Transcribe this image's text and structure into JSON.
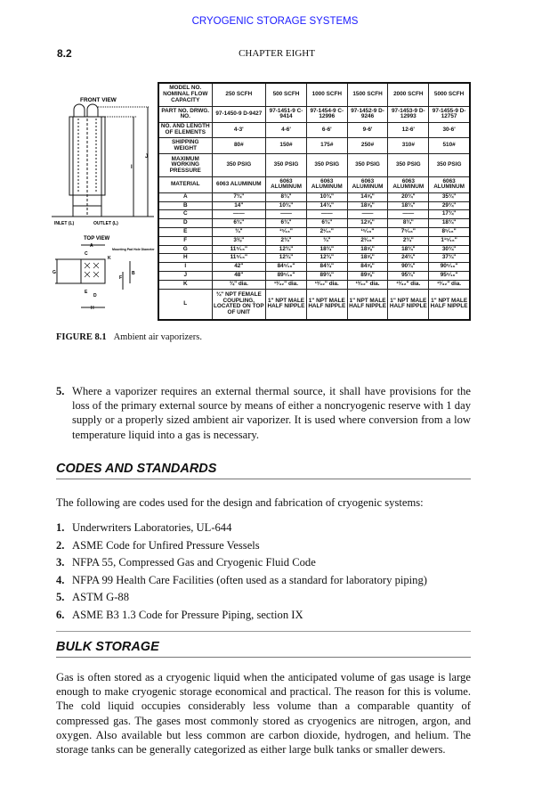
{
  "running_header": "CRYOGENIC STORAGE SYSTEMS",
  "page_number": "8.2",
  "chapter": "CHAPTER EIGHT",
  "figure": {
    "labels": {
      "front_view": "FRONT VIEW",
      "top_view": "TOP VIEW",
      "inlet": "INLET (L)",
      "outlet": "OUTLET (L)",
      "mounting": "Mounting Pad Hole Diameter",
      "I": "I",
      "J": "J",
      "A": "A",
      "B": "B",
      "C": "C",
      "D": "D",
      "E": "E",
      "F": "F",
      "G": "G",
      "H": "H",
      "K": "K"
    },
    "number": "FIGURE 8.1",
    "caption": "Ambient air vaporizers."
  },
  "table": {
    "rows": [
      {
        "label": "MODEL NO. NOMINAL FLOW CAPACITY",
        "values": [
          "250 SCFH",
          "500 SCFH",
          "1000 SCFH",
          "1500 SCFH",
          "2000 SCFH",
          "5000 SCFH"
        ]
      },
      {
        "label": "PART NO. DRWG. NO.",
        "values": [
          "97-1450-9 D-9427",
          "97-1451-9 C-9414",
          "97-1454-9 C-12996",
          "97-1452-9 D-9246",
          "97-1453-9 D-12993",
          "97-1455-9 D-12757"
        ]
      },
      {
        "label": "NO. AND LENGTH OF ELEMENTS",
        "values": [
          "4-3'",
          "4-6'",
          "6-6'",
          "9-6'",
          "12-6'",
          "30-6'"
        ]
      },
      {
        "label": "SHIPPING WEIGHT",
        "values": [
          "80#",
          "150#",
          "175#",
          "250#",
          "310#",
          "510#"
        ]
      },
      {
        "label": "MAXIMUM WORKING PRESSURE",
        "values": [
          "350 PSIG",
          "350 PSIG",
          "350 PSIG",
          "350 PSIG",
          "350 PSIG",
          "350 PSIG"
        ]
      },
      {
        "label": "MATERIAL",
        "values": [
          "6063 ALUMINUM",
          "6063 ALUMINUM",
          "6063 ALUMINUM",
          "6063 ALUMINUM",
          "6063 ALUMINUM",
          "6063 ALUMINUM"
        ]
      },
      {
        "label": "A",
        "values": [
          "7¾\"",
          "8¾\"",
          "10¾\"",
          "14⅝\"",
          "20¾\"",
          "35¾\""
        ]
      },
      {
        "label": "B",
        "values": [
          "14\"",
          "10¾\"",
          "14¾\"",
          "18⅝\"",
          "18¾\"",
          "29¾\""
        ]
      },
      {
        "label": "C",
        "values": [
          "——",
          "——",
          "——",
          "——",
          "——",
          "17¾\""
        ]
      },
      {
        "label": "D",
        "values": [
          "6¾\"",
          "6¾\"",
          "6¾\"",
          "12⅝\"",
          "8¾\"",
          "18¾\""
        ]
      },
      {
        "label": "E",
        "values": [
          "¾\"",
          "¹⁵⁄₁₆\"",
          "2¹⁄₁₆\"",
          "¹⁵⁄₁₆\"",
          "7⁵⁄₁₆\"",
          "8⁵⁄₁₆\""
        ]
      },
      {
        "label": "F",
        "values": [
          "3⅜\"",
          "2¾\"",
          "¾\"",
          "2³⁄₁₆\"",
          "2¾\"",
          "1¹⁵⁄₁₆\""
        ]
      },
      {
        "label": "G",
        "values": [
          "11⁵⁄₁₆\"",
          "12¾\"",
          "18¾\"",
          "18⅝\"",
          "18¾\"",
          "30¾\""
        ]
      },
      {
        "label": "H",
        "values": [
          "11⁵⁄₁₆\"",
          "12¾\"",
          "12¾\"",
          "18⅝\"",
          "24¾\"",
          "37¾\""
        ]
      },
      {
        "label": "I",
        "values": [
          "42\"",
          "84⁵⁄₁₆\"",
          "84¾\"",
          "84⅝\"",
          "90¾\"",
          "90⁵⁄₁₆\""
        ]
      },
      {
        "label": "J",
        "values": [
          "48\"",
          "89⁵⁄₁₆\"",
          "89¾\"",
          "89⅝\"",
          "95¾\"",
          "95⁵⁄₁₆\""
        ]
      },
      {
        "label": "K",
        "values": [
          "¾\" dia.",
          "¹³⁄₃₂\" dia.",
          "¹³⁄₃₂\" dia.",
          "¹³⁄₃₂\" dia.",
          "¹³⁄₃₂\" dia.",
          "¹³⁄₃₂\" dia."
        ]
      },
      {
        "label": "L",
        "values": [
          "¾\" NPT FEMALE COUPLING, LOCATED ON TOP OF UNIT",
          "1\" NPT MALE HALF NIPPLE",
          "1\" NPT MALE HALF NIPPLE",
          "1\" NPT MALE HALF NIPPLE",
          "1\" NPT MALE HALF NIPPLE",
          "1\" NPT MALE HALF NIPPLE"
        ]
      }
    ]
  },
  "item5": {
    "number": "5.",
    "text": "Where a vaporizer requires an external thermal source, it shall have provisions for the loss of the primary external source by means of either a noncryogenic reserve with 1 day supply or a properly sized ambient air vaporizer. It is used where conversion from a low temperature liquid into a gas is necessary."
  },
  "codes": {
    "heading": "CODES AND STANDARDS",
    "intro": "The following are codes used for the design and fabrication of cryogenic systems:",
    "items": [
      {
        "n": "1.",
        "t": "Underwriters Laboratories, UL-644"
      },
      {
        "n": "2.",
        "t": "ASME Code for Unfired Pressure Vessels"
      },
      {
        "n": "3.",
        "t": "NFPA 55, Compressed Gas and Cryogenic Fluid Code"
      },
      {
        "n": "4.",
        "t": "NFPA 99 Health Care Facilities (often used as a standard for laboratory piping)"
      },
      {
        "n": "5.",
        "t": "ASTM G-88"
      },
      {
        "n": "6.",
        "t": "ASME B3 1.3 Code for Pressure Piping, section IX"
      }
    ]
  },
  "bulk": {
    "heading": "BULK STORAGE",
    "text": "Gas is often stored as a cryogenic liquid when the anticipated volume of gas usage is large enough to make cryogenic storage economical and practical. The reason for this is volume. The cold liquid occupies considerably less volume than a comparable quantity of compressed gas. The gases most commonly stored as cryogenics are nitrogen, argon, and oxygen. Also available but less common are carbon dioxide, hydrogen, and helium. The storage tanks can be generally categorized as either large bulk tanks or smaller dewers."
  }
}
